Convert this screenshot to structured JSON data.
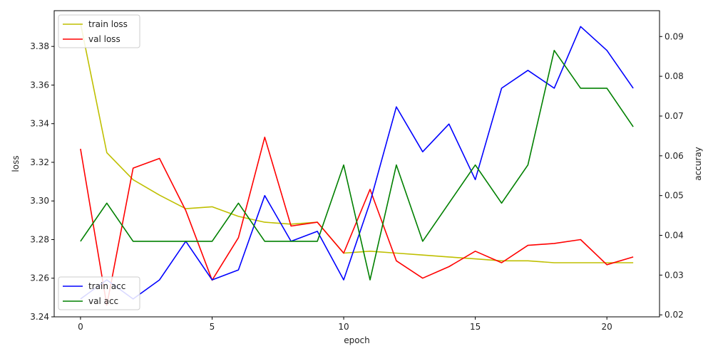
{
  "chart_data": {
    "type": "line",
    "x": [
      0,
      1,
      2,
      3,
      4,
      5,
      6,
      7,
      8,
      9,
      10,
      11,
      12,
      13,
      14,
      15,
      16,
      17,
      18,
      19,
      20,
      21
    ],
    "xlabel": "epoch",
    "x_ticks": [
      0,
      5,
      10,
      15,
      20
    ],
    "xlim": [
      -1,
      22
    ],
    "left_axis": {
      "label": "loss",
      "ylim": [
        3.24,
        3.3985
      ],
      "ticks": [
        3.24,
        3.26,
        3.28,
        3.3,
        3.32,
        3.34,
        3.36,
        3.38
      ],
      "tick_labels": [
        "3.24",
        "3.26",
        "3.28",
        "3.30",
        "3.32",
        "3.34",
        "3.36",
        "3.38"
      ]
    },
    "right_axis": {
      "label": "accuray",
      "ylim": [
        0.0195,
        0.0965
      ],
      "ticks": [
        0.02,
        0.03,
        0.04,
        0.05,
        0.06,
        0.07,
        0.08,
        0.09
      ],
      "tick_labels": [
        "0.02",
        "0.03",
        "0.04",
        "0.05",
        "0.06",
        "0.07",
        "0.08",
        "0.09"
      ]
    },
    "series": [
      {
        "name": "train loss",
        "axis": "left",
        "color": "#bfbf00",
        "values": [
          3.392,
          3.325,
          3.311,
          3.303,
          3.296,
          3.297,
          3.292,
          3.289,
          3.288,
          3.289,
          3.273,
          3.274,
          3.273,
          3.272,
          3.271,
          3.27,
          3.269,
          3.269,
          3.268,
          3.268,
          3.268,
          3.268
        ]
      },
      {
        "name": "val loss",
        "axis": "left",
        "color": "#ff0000",
        "values": [
          3.327,
          3.246,
          3.317,
          3.322,
          3.295,
          3.259,
          3.281,
          3.333,
          3.287,
          3.289,
          3.273,
          3.306,
          3.269,
          3.26,
          3.266,
          3.274,
          3.268,
          3.277,
          3.278,
          3.28,
          3.267,
          3.271
        ]
      },
      {
        "name": "train acc",
        "axis": "right",
        "color": "#0000ff",
        "values": [
          0.024,
          0.0288,
          0.024,
          0.0288,
          0.0385,
          0.0288,
          0.0313,
          0.05,
          0.0385,
          0.041,
          0.0288,
          0.0483,
          0.0723,
          0.061,
          0.068,
          0.054,
          0.077,
          0.0815,
          0.077,
          0.0925,
          0.0865,
          0.077
        ]
      },
      {
        "name": "val acc",
        "axis": "right",
        "color": "#008000",
        "values": [
          0.0385,
          0.0481,
          0.0385,
          0.0385,
          0.0385,
          0.0385,
          0.0481,
          0.0385,
          0.0385,
          0.0385,
          0.0577,
          0.0288,
          0.0577,
          0.0385,
          0.0481,
          0.0577,
          0.0481,
          0.0577,
          0.0865,
          0.077,
          0.077,
          0.0673
        ]
      }
    ],
    "legends": [
      {
        "placement": "top-left",
        "items": [
          "train loss",
          "val loss"
        ]
      },
      {
        "placement": "bottom-left",
        "items": [
          "train acc",
          "val acc"
        ]
      }
    ],
    "grid": false
  }
}
